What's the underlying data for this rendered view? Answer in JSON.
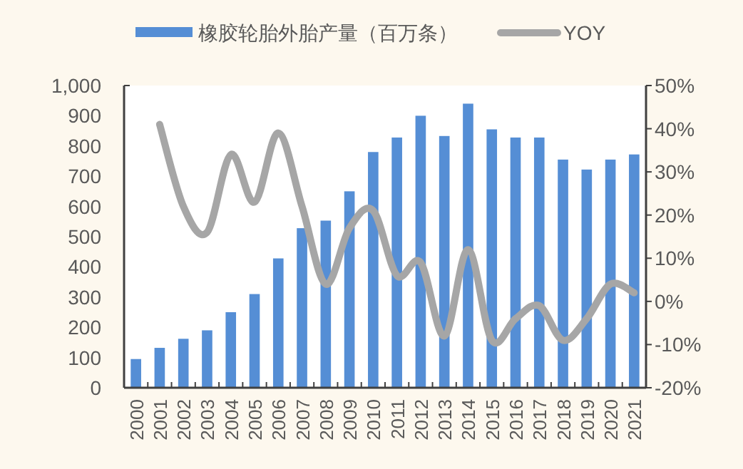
{
  "chart_data": {
    "type": "bar",
    "categories": [
      "2000",
      "2001",
      "2002",
      "2003",
      "2004",
      "2005",
      "2006",
      "2007",
      "2008",
      "2009",
      "2010",
      "2011",
      "2012",
      "2013",
      "2014",
      "2015",
      "2016",
      "2017",
      "2018",
      "2019",
      "2020",
      "2021"
    ],
    "series": [
      {
        "name": "橡胶轮胎外胎产量（百万条）",
        "color": "#558ed5",
        "values": [
          95,
          132,
          162,
          190,
          250,
          310,
          428,
          528,
          553,
          650,
          780,
          828,
          900,
          833,
          940,
          855,
          828,
          828,
          755,
          722,
          755,
          772
        ]
      },
      {
        "name": "YOY",
        "type": "line",
        "axis": "y2",
        "color": "#a6a6a6",
        "values": [
          null,
          41,
          22,
          16,
          34,
          23,
          39,
          22,
          4,
          17,
          21,
          6,
          9,
          -8,
          12,
          -9,
          -4,
          -1,
          -9,
          -4,
          4,
          2
        ]
      }
    ],
    "ylim": [
      0,
      1000
    ],
    "yticks": [
      0,
      100,
      200,
      300,
      400,
      500,
      600,
      700,
      800,
      900,
      {
        "value": 1000,
        "label": "1,000"
      }
    ],
    "y2lim": [
      -20,
      50
    ],
    "y2ticks": [
      {
        "value": -20,
        "label": "-20%"
      },
      {
        "value": -10,
        "label": "-10%"
      },
      {
        "value": 0,
        "label": "0%"
      },
      {
        "value": 10,
        "label": "10%"
      },
      {
        "value": 20,
        "label": "20%"
      },
      {
        "value": 30,
        "label": "30%"
      },
      {
        "value": 40,
        "label": "40%"
      },
      {
        "value": 50,
        "label": "50%"
      }
    ],
    "legend": "top",
    "grid": false
  }
}
